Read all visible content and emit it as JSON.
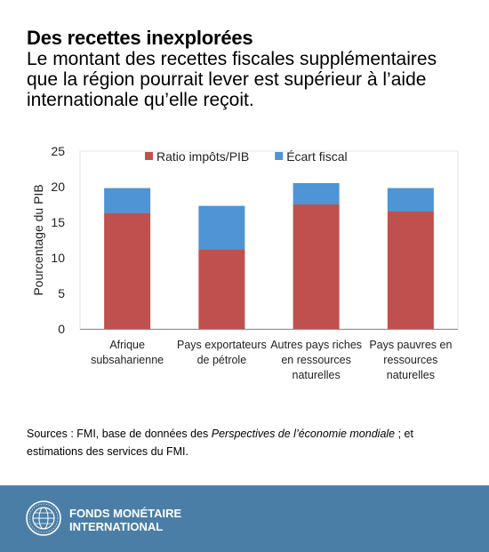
{
  "title": "Des recettes inexplorées",
  "subtitle": "Le montant des recettes fiscales supplémentaires que la région pourrait lever est supérieur à l’aide internationale qu’elle reçoit.",
  "sources": {
    "prefix": "Sources : FMI, base de données des ",
    "italic": "Perspectives de l’économie mondiale",
    "suffix": " ; et estimations des services du FMI."
  },
  "footer": {
    "line1": "FONDS MONÉTAIRE",
    "line2": "INTERNATIONAL"
  },
  "colors": {
    "tax_ratio": "#c0504d",
    "fiscal_gap": "#4f94d4",
    "footer_bg": "#4a7ea6"
  },
  "chart_data": {
    "type": "bar",
    "stacked": true,
    "categories": [
      [
        "Afrique",
        "subsaharienne"
      ],
      [
        "Pays exportateurs",
        "de pétrole"
      ],
      [
        "Autres pays riches",
        "en ressources",
        "naturelles"
      ],
      [
        "Pays pauvres en",
        "ressources",
        "naturelles"
      ]
    ],
    "series": [
      {
        "name": "Ratio impôts/PIB",
        "values": [
          16.3,
          11.2,
          17.5,
          16.5
        ],
        "color": "#c0504d"
      },
      {
        "name": "Écart fiscal",
        "values": [
          3.5,
          6.1,
          3.0,
          3.3
        ],
        "color": "#4f94d4"
      }
    ],
    "ylabel": "Pourcentage du PIB",
    "ylim": [
      0,
      25
    ],
    "yticks": [
      0,
      5,
      10,
      15,
      20,
      25
    ],
    "legend": "top",
    "grid": false
  }
}
